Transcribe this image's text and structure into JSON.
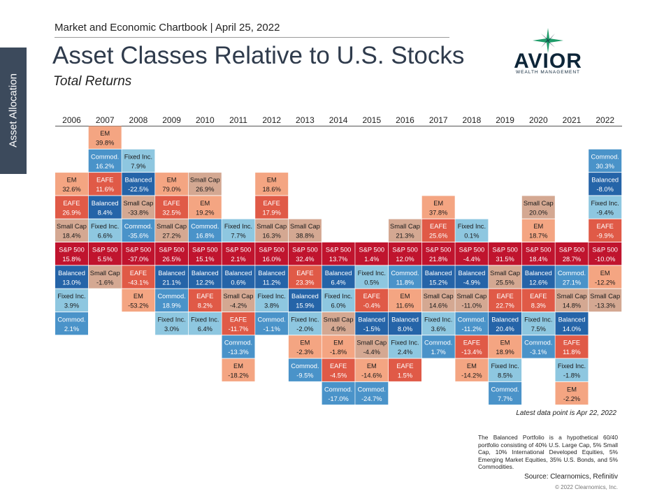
{
  "side_tab": "Asset Allocation",
  "header": "Market and Economic Chartbook | April 25, 2022",
  "title": "Asset Classes Relative to U.S. Stocks",
  "subtitle": "Total Returns",
  "logo": {
    "word": "AVIOR",
    "sub": "WEALTH MANAGEMENT",
    "icon": "star-icon",
    "color": "#0d2538",
    "accent": "#1f9c6a"
  },
  "latest_note": "Latest data point is Apr 22, 2022",
  "footnote": "The Balanced Portfolio is a hypothetical 60/40 portfolio consisting of 40% U.S. Large Cap, 5% Small Cap, 10% International Developed Equities, 5% Emerging Market Equities, 35% U.S. Bonds, and 5% Commodities.",
  "source": "Source: Clearnomics, Refinitiv",
  "copyright": "© 2022 Clearnomics, Inc.",
  "chart_data": {
    "type": "table",
    "baseline": "S&P 500",
    "colors": {
      "EM": "#f4a582",
      "EAFE": "#e05a47",
      "Small Cap": "#d4a892",
      "S&P 500": "#c0142e",
      "Balanced": "#2564a8",
      "Fixed Inc.": "#8ec7e0",
      "Commod.": "#4a93c9"
    },
    "years": [
      "2006",
      "2007",
      "2008",
      "2009",
      "2010",
      "2011",
      "2012",
      "2013",
      "2014",
      "2015",
      "2016",
      "2017",
      "2018",
      "2019",
      "2020",
      "2021",
      "2022"
    ],
    "columns": [
      {
        "year": "2006",
        "above": [
          [
            "Small Cap",
            "18.4%"
          ],
          [
            "EAFE",
            "26.9%"
          ],
          [
            "EM",
            "32.6%"
          ]
        ],
        "sp500": "15.8%",
        "below": [
          [
            "Balanced",
            "13.0%"
          ],
          [
            "Fixed Inc.",
            "3.9%"
          ],
          [
            "Commod.",
            "2.1%"
          ]
        ]
      },
      {
        "year": "2007",
        "above": [
          [
            "Fixed Inc.",
            "6.6%"
          ],
          [
            "Balanced",
            "8.4%"
          ],
          [
            "EAFE",
            "11.6%"
          ],
          [
            "Commod.",
            "16.2%"
          ],
          [
            "EM",
            "39.8%"
          ]
        ],
        "sp500": "5.5%",
        "below": [
          [
            "Small Cap",
            "-1.6%"
          ]
        ]
      },
      {
        "year": "2008",
        "above": [
          [
            "Commod.",
            "-35.6%"
          ],
          [
            "Small Cap",
            "-33.8%"
          ],
          [
            "Balanced",
            "-22.5%"
          ],
          [
            "Fixed Inc.",
            "7.9%"
          ]
        ],
        "sp500": "-37.0%",
        "below": [
          [
            "EAFE",
            "-43.1%"
          ],
          [
            "EM",
            "-53.2%"
          ]
        ]
      },
      {
        "year": "2009",
        "above": [
          [
            "Small Cap",
            "27.2%"
          ],
          [
            "EAFE",
            "32.5%"
          ],
          [
            "EM",
            "79.0%"
          ]
        ],
        "sp500": "26.5%",
        "below": [
          [
            "Balanced",
            "21.1%"
          ],
          [
            "Commod.",
            "18.9%"
          ],
          [
            "Fixed Inc.",
            "3.0%"
          ]
        ]
      },
      {
        "year": "2010",
        "above": [
          [
            "Commod.",
            "16.8%"
          ],
          [
            "EM",
            "19.2%"
          ],
          [
            "Small Cap",
            "26.9%"
          ]
        ],
        "sp500": "15.1%",
        "below": [
          [
            "Balanced",
            "12.2%"
          ],
          [
            "EAFE",
            "8.2%"
          ],
          [
            "Fixed Inc.",
            "6.4%"
          ]
        ]
      },
      {
        "year": "2011",
        "above": [
          [
            "Fixed Inc.",
            "7.7%"
          ]
        ],
        "sp500": "2.1%",
        "below": [
          [
            "Balanced",
            "0.6%"
          ],
          [
            "Small Cap",
            "-4.2%"
          ],
          [
            "EAFE",
            "-11.7%"
          ],
          [
            "Commod.",
            "-13.3%"
          ],
          [
            "EM",
            "-18.2%"
          ]
        ]
      },
      {
        "year": "2012",
        "above": [
          [
            "Small Cap",
            "16.3%"
          ],
          [
            "EAFE",
            "17.9%"
          ],
          [
            "EM",
            "18.6%"
          ]
        ],
        "sp500": "16.0%",
        "below": [
          [
            "Balanced",
            "11.2%"
          ],
          [
            "Fixed Inc.",
            "3.8%"
          ],
          [
            "Commod.",
            "-1.1%"
          ]
        ]
      },
      {
        "year": "2013",
        "above": [
          [
            "Small Cap",
            "38.8%"
          ]
        ],
        "sp500": "32.4%",
        "below": [
          [
            "EAFE",
            "23.3%"
          ],
          [
            "Balanced",
            "15.9%"
          ],
          [
            "Fixed Inc.",
            "-2.0%"
          ],
          [
            "EM",
            "-2.3%"
          ],
          [
            "Commod.",
            "-9.5%"
          ]
        ]
      },
      {
        "year": "2014",
        "above": [],
        "sp500": "13.7%",
        "below": [
          [
            "Balanced",
            "6.4%"
          ],
          [
            "Fixed Inc.",
            "6.0%"
          ],
          [
            "Small Cap",
            "4.9%"
          ],
          [
            "EM",
            "-1.8%"
          ],
          [
            "EAFE",
            "-4.5%"
          ],
          [
            "Commod.",
            "-17.0%"
          ]
        ]
      },
      {
        "year": "2015",
        "above": [],
        "sp500": "1.4%",
        "below": [
          [
            "Fixed Inc.",
            "0.5%"
          ],
          [
            "EAFE",
            "-0.4%"
          ],
          [
            "Balanced",
            "-1.5%"
          ],
          [
            "Small Cap",
            "-4.4%"
          ],
          [
            "EM",
            "-14.6%"
          ],
          [
            "Commod.",
            "-24.7%"
          ]
        ]
      },
      {
        "year": "2016",
        "above": [
          [
            "Small Cap",
            "21.3%"
          ]
        ],
        "sp500": "12.0%",
        "below": [
          [
            "Commod.",
            "11.8%"
          ],
          [
            "EM",
            "11.6%"
          ],
          [
            "Balanced",
            "8.0%"
          ],
          [
            "Fixed Inc.",
            "2.4%"
          ],
          [
            "EAFE",
            "1.5%"
          ]
        ]
      },
      {
        "year": "2017",
        "above": [
          [
            "EAFE",
            "25.6%"
          ],
          [
            "EM",
            "37.8%"
          ]
        ],
        "sp500": "21.8%",
        "below": [
          [
            "Balanced",
            "15.2%"
          ],
          [
            "Small Cap",
            "14.6%"
          ],
          [
            "Fixed Inc.",
            "3.6%"
          ],
          [
            "Commod.",
            "1.7%"
          ]
        ]
      },
      {
        "year": "2018",
        "above": [
          [
            "Fixed Inc.",
            "0.1%"
          ]
        ],
        "sp500": "-4.4%",
        "below": [
          [
            "Balanced",
            "-4.9%"
          ],
          [
            "Small Cap",
            "-11.0%"
          ],
          [
            "Commod.",
            "-11.2%"
          ],
          [
            "EAFE",
            "-13.4%"
          ],
          [
            "EM",
            "-14.2%"
          ]
        ]
      },
      {
        "year": "2019",
        "above": [],
        "sp500": "31.5%",
        "below": [
          [
            "Small Cap",
            "25.5%"
          ],
          [
            "EAFE",
            "22.7%"
          ],
          [
            "Balanced",
            "20.4%"
          ],
          [
            "EM",
            "18.9%"
          ],
          [
            "Fixed Inc.",
            "8.5%"
          ],
          [
            "Commod.",
            "7.7%"
          ]
        ]
      },
      {
        "year": "2020",
        "above": [
          [
            "EM",
            "18.7%"
          ],
          [
            "Small Cap",
            "20.0%"
          ]
        ],
        "sp500": "18.4%",
        "below": [
          [
            "Balanced",
            "12.6%"
          ],
          [
            "EAFE",
            "8.3%"
          ],
          [
            "Fixed Inc.",
            "7.5%"
          ],
          [
            "Commod.",
            "-3.1%"
          ]
        ]
      },
      {
        "year": "2021",
        "above": [],
        "sp500": "28.7%",
        "below": [
          [
            "Commod.",
            "27.1%"
          ],
          [
            "Small Cap",
            "14.8%"
          ],
          [
            "Balanced",
            "14.0%"
          ],
          [
            "EAFE",
            "11.8%"
          ],
          [
            "Fixed Inc.",
            "-1.8%"
          ],
          [
            "EM",
            "-2.2%"
          ]
        ]
      },
      {
        "year": "2022",
        "above": [
          [
            "EAFE",
            "-9.9%"
          ],
          [
            "Fixed Inc.",
            "-9.4%"
          ],
          [
            "Balanced",
            "-8.0%"
          ],
          [
            "Commod.",
            "30.3%"
          ]
        ],
        "sp500": "-10.0%",
        "below": [
          [
            "EM",
            "-12.2%"
          ],
          [
            "Small Cap",
            "-13.3%"
          ]
        ]
      }
    ]
  }
}
